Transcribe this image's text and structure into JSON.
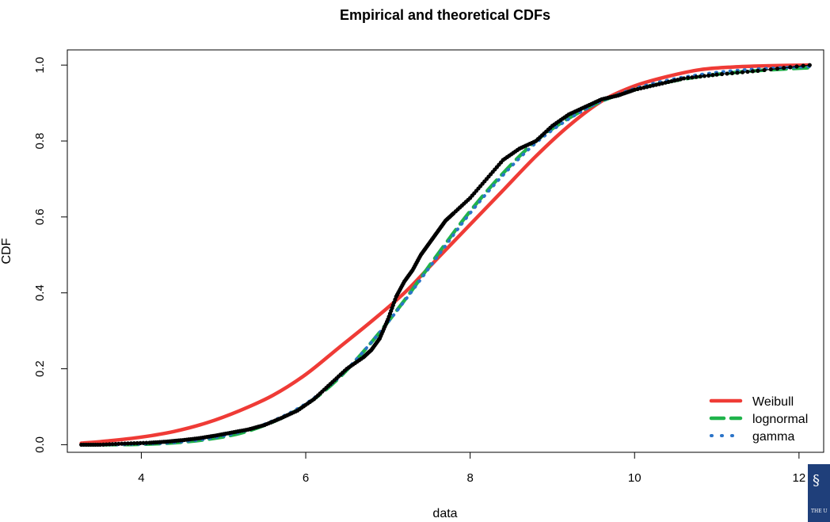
{
  "chart_data": {
    "type": "line",
    "title": "Empirical and theoretical CDFs",
    "xlabel": "data",
    "ylabel": "CDF",
    "xlim": [
      3.1,
      12.3
    ],
    "ylim": [
      -0.02,
      1.04
    ],
    "xticks": [
      4,
      6,
      8,
      10,
      12
    ],
    "yticks": [
      0.0,
      0.2,
      0.4,
      0.6,
      0.8,
      1.0
    ],
    "grid": false,
    "legend_position": "bottom-right",
    "series": [
      {
        "name": "Weibull",
        "style": "solid",
        "color": "#ef3b36",
        "x": [
          3.27,
          3.6,
          4.0,
          4.4,
          4.8,
          5.2,
          5.6,
          6.0,
          6.4,
          6.8,
          7.2,
          7.6,
          8.0,
          8.4,
          8.8,
          9.2,
          9.6,
          10.0,
          10.4,
          10.8,
          11.2,
          11.6,
          12.13
        ],
        "y": [
          0.004,
          0.01,
          0.02,
          0.035,
          0.058,
          0.09,
          0.13,
          0.185,
          0.255,
          0.325,
          0.4,
          0.49,
          0.58,
          0.67,
          0.76,
          0.84,
          0.905,
          0.945,
          0.97,
          0.988,
          0.995,
          0.998,
          1.0
        ]
      },
      {
        "name": "lognormal",
        "style": "dashed",
        "color": "#1fb34a",
        "x": [
          3.27,
          3.6,
          4.0,
          4.4,
          4.8,
          5.2,
          5.6,
          6.0,
          6.4,
          6.8,
          7.2,
          7.6,
          8.0,
          8.4,
          8.8,
          9.2,
          9.6,
          10.0,
          10.4,
          10.8,
          11.2,
          11.6,
          12.13
        ],
        "y": [
          0.0,
          0.0,
          0.001,
          0.005,
          0.014,
          0.03,
          0.06,
          0.105,
          0.175,
          0.27,
          0.38,
          0.5,
          0.615,
          0.715,
          0.8,
          0.86,
          0.905,
          0.935,
          0.955,
          0.97,
          0.98,
          0.987,
          0.993
        ]
      },
      {
        "name": "gamma",
        "style": "dotted",
        "color": "#2b74c8",
        "x": [
          3.27,
          3.6,
          4.0,
          4.4,
          4.8,
          5.2,
          5.6,
          6.0,
          6.4,
          6.8,
          7.2,
          7.6,
          8.0,
          8.4,
          8.8,
          9.2,
          9.6,
          10.0,
          10.4,
          10.8,
          11.2,
          11.6,
          12.13
        ],
        "y": [
          0.0,
          0.0,
          0.002,
          0.006,
          0.016,
          0.033,
          0.063,
          0.108,
          0.177,
          0.27,
          0.378,
          0.495,
          0.61,
          0.71,
          0.795,
          0.858,
          0.905,
          0.938,
          0.96,
          0.975,
          0.985,
          0.991,
          0.996
        ]
      }
    ],
    "empirical": {
      "name": "empirical",
      "color": "#000000",
      "x": [
        3.27,
        3.5,
        3.8,
        4.1,
        4.3,
        4.5,
        4.7,
        4.9,
        5.1,
        5.3,
        5.5,
        5.7,
        5.9,
        6.1,
        6.3,
        6.5,
        6.7,
        6.8,
        6.9,
        7.0,
        7.1,
        7.2,
        7.3,
        7.4,
        7.5,
        7.6,
        7.7,
        7.8,
        8.0,
        8.2,
        8.4,
        8.6,
        8.8,
        9.0,
        9.2,
        9.4,
        9.6,
        9.8,
        10.0,
        10.3,
        10.6,
        11.0,
        11.5,
        12.13
      ],
      "y": [
        0.0,
        0.0,
        0.003,
        0.005,
        0.008,
        0.012,
        0.017,
        0.024,
        0.032,
        0.04,
        0.052,
        0.07,
        0.09,
        0.12,
        0.16,
        0.2,
        0.23,
        0.25,
        0.28,
        0.33,
        0.39,
        0.43,
        0.46,
        0.5,
        0.53,
        0.56,
        0.59,
        0.61,
        0.65,
        0.7,
        0.75,
        0.78,
        0.8,
        0.84,
        0.87,
        0.89,
        0.91,
        0.92,
        0.935,
        0.95,
        0.965,
        0.975,
        0.985,
        1.0
      ]
    }
  },
  "logo": {
    "caption": "THE U"
  }
}
